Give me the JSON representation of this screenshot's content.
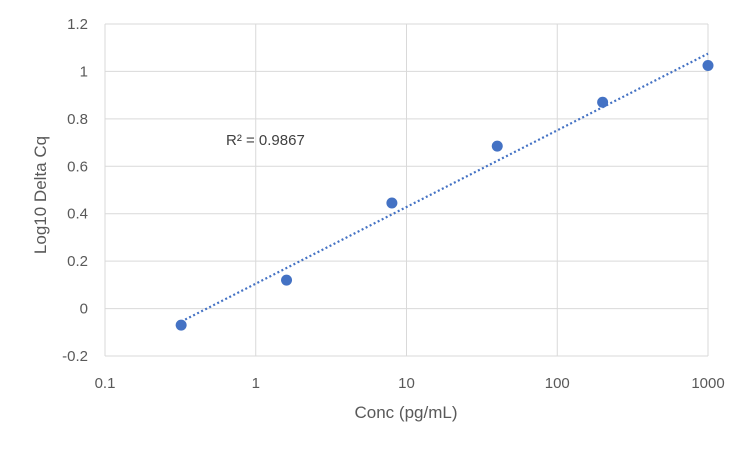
{
  "chart_data": {
    "type": "scatter",
    "xlabel": "Conc (pg/mL)",
    "ylabel": "Log10 Delta Cq",
    "x_scale": "log",
    "xlim": [
      0.1,
      1000
    ],
    "ylim": [
      -0.2,
      1.2
    ],
    "x_ticks": [
      "0.1",
      "1",
      "10",
      "100",
      "1000"
    ],
    "y_ticks": [
      "-0.2",
      "0",
      "0.2",
      "0.4",
      "0.6",
      "0.8",
      "1",
      "1.2"
    ],
    "grid": true,
    "points": [
      {
        "x": 0.32,
        "y": -0.07
      },
      {
        "x": 1.6,
        "y": 0.12
      },
      {
        "x": 8,
        "y": 0.445
      },
      {
        "x": 40,
        "y": 0.685
      },
      {
        "x": 200,
        "y": 0.87
      },
      {
        "x": 1000,
        "y": 1.025
      }
    ],
    "trendline": {
      "type": "linear",
      "style": "dotted",
      "from": {
        "x": 0.32,
        "y": -0.055
      },
      "to": {
        "x": 1000,
        "y": 1.075
      }
    },
    "annotation": "R² = 0.9867",
    "marker_color": "#4472C4",
    "trendline_color": "#4472C4",
    "grid_color": "#D9D9D9"
  }
}
